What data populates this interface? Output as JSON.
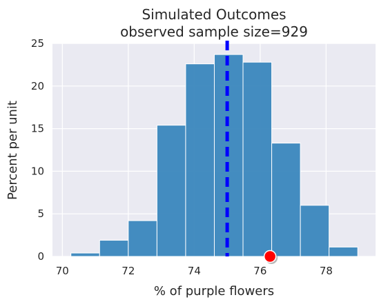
{
  "chart_data": {
    "type": "bar",
    "title": [
      "Simulated Outcomes",
      "observed sample size=929"
    ],
    "xlabel": "% of purple flowers",
    "ylabel": "Percent per unit",
    "xlim": [
      69.7,
      79.5
    ],
    "ylim": [
      0,
      25
    ],
    "xticks": [
      70,
      72,
      74,
      76,
      78
    ],
    "yticks": [
      0,
      5,
      10,
      15,
      20,
      25
    ],
    "grid": true,
    "bins": [
      {
        "start": 70.26,
        "end": 71.13,
        "value": 0.4
      },
      {
        "start": 71.13,
        "end": 72.0,
        "value": 1.9
      },
      {
        "start": 72.0,
        "end": 72.87,
        "value": 4.2
      },
      {
        "start": 72.87,
        "end": 73.74,
        "value": 15.4
      },
      {
        "start": 73.74,
        "end": 74.61,
        "value": 22.6
      },
      {
        "start": 74.61,
        "end": 75.48,
        "value": 23.7
      },
      {
        "start": 75.48,
        "end": 76.35,
        "value": 22.8
      },
      {
        "start": 76.35,
        "end": 77.22,
        "value": 13.3
      },
      {
        "start": 77.22,
        "end": 78.09,
        "value": 6.0
      },
      {
        "start": 78.09,
        "end": 78.96,
        "value": 1.1
      }
    ],
    "reference_line": {
      "x": 75.0,
      "style": "dashed",
      "color": "#0000ff"
    },
    "observed_point": {
      "x": 76.3,
      "y": 0,
      "color": "#ff0000"
    },
    "colors": {
      "bar": "#3a87bd",
      "background": "#eaeaf2",
      "grid": "#ffffff"
    }
  }
}
